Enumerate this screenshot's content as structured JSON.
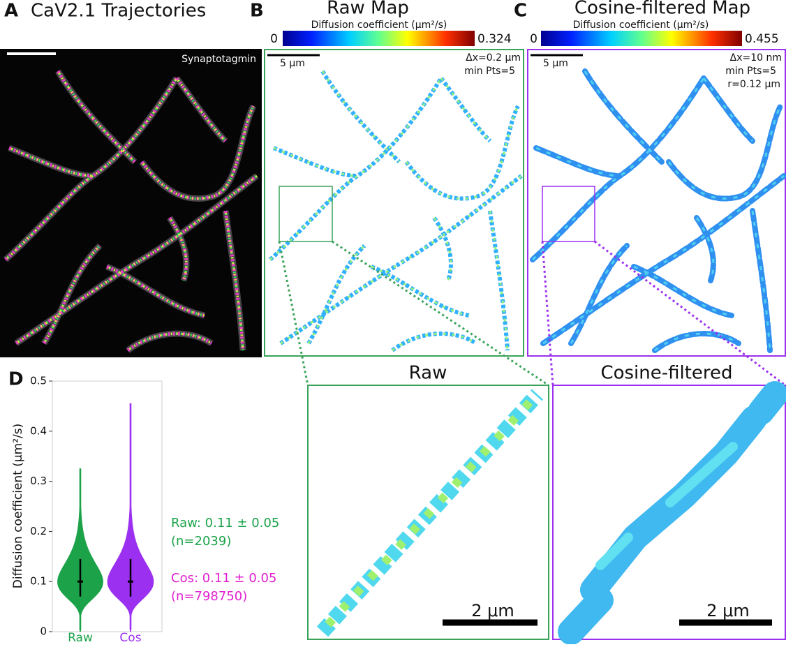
{
  "panels": {
    "A": {
      "letter": "A",
      "title": "CaV2.1 Trajectories",
      "label": "Synaptotagmin"
    },
    "B": {
      "letter": "B",
      "title": "Raw Map",
      "colorbar": {
        "label": "Diffusion coefficient (μm²/s)",
        "min": 0,
        "max": 0.324
      },
      "scalebar": "5 μm",
      "notes": [
        "Δx=0.2 μm",
        "min Pts=5"
      ]
    },
    "C": {
      "letter": "C",
      "title": "Cosine-filtered Map",
      "colorbar": {
        "label": "Diffusion coefficient (μm²/s)",
        "min": 0,
        "max": 0.455
      },
      "scalebar": "5 μm",
      "notes": [
        "Δx=10 nm",
        "min Pts=5",
        "r=0.12 μm"
      ]
    },
    "zoom_raw": {
      "title": "Raw",
      "scalebar": "2 μm"
    },
    "zoom_cos": {
      "title": "Cosine-filtered",
      "scalebar": "2 μm"
    }
  },
  "chart_data": {
    "type": "violin",
    "letter": "D",
    "ylabel": "Diffusion coefficient (μm²/s)",
    "ylim": [
      0,
      0.5
    ],
    "yticks": [
      0,
      0.1,
      0.2,
      0.3,
      0.4,
      0.5
    ],
    "categories": [
      "Raw",
      "Cos"
    ],
    "series": [
      {
        "name": "Raw",
        "color": "#1ca34a",
        "max": 0.325,
        "median": 0.1,
        "q1": 0.07,
        "q3": 0.145,
        "stats": "Raw: 0.11 ± 0.05",
        "n": "(n=2039)"
      },
      {
        "name": "Cos",
        "color": "#9b30f0",
        "max": 0.455,
        "median": 0.1,
        "q1": 0.07,
        "q3": 0.145,
        "stats": "Cos: 0.11 ± 0.05",
        "n": "(n=798750)",
        "stats_color": "#e020d0"
      }
    ]
  }
}
